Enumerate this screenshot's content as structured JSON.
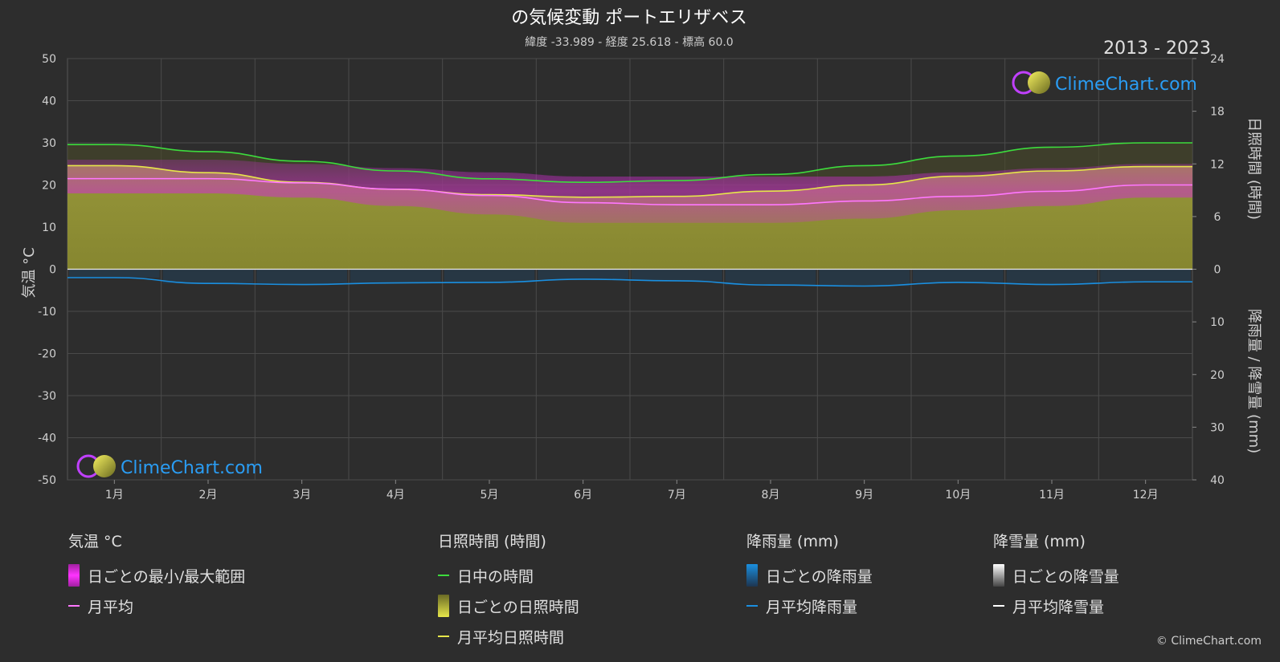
{
  "header": {
    "title": "の気候変動 ポートエリザベス",
    "subtitle": "緯度 -33.989 - 経度 25.618 - 標高 60.0",
    "years": "2013 - 2023"
  },
  "brand": {
    "text": "ClimeChart.com",
    "copyright": "© ClimeChart.com"
  },
  "axes": {
    "left_title": "気温 °C",
    "right_top_title": "日照時間 (時間)",
    "right_bottom_title": "降雨量 / 降雪量 (mm)"
  },
  "legend": {
    "temperature": {
      "title": "気温 °C",
      "items": [
        "日ごとの最小/最大範囲",
        "月平均"
      ]
    },
    "sunshine": {
      "title": "日照時間 (時間)",
      "items": [
        "日中の時間",
        "日ごとの日照時間",
        "月平均日照時間"
      ]
    },
    "rain": {
      "title": "降雨量 (mm)",
      "items": [
        "日ごとの降雨量",
        "月平均降雨量"
      ]
    },
    "snow": {
      "title": "降雪量 (mm)",
      "items": [
        "日ごとの降雪量",
        "月平均降雪量"
      ]
    }
  },
  "colors": {
    "background": "#2d2d2d",
    "daylight": "#3ddc3d",
    "sunshine_line": "#e6e64a",
    "sunshine_fill": "#8f8f32",
    "temp_range": "#d02ed0",
    "temp_avg": "#ff77ff",
    "rain": "#1a8fe0",
    "snow": "#ffffff",
    "brand": "#2a9df4"
  },
  "chart_data": {
    "type": "area",
    "categories": [
      "1月",
      "2月",
      "3月",
      "4月",
      "5月",
      "6月",
      "7月",
      "8月",
      "9月",
      "10月",
      "11月",
      "12月"
    ],
    "left_axis": {
      "label": "気温 °C",
      "range": [
        -50,
        50
      ],
      "ticks": [
        50,
        40,
        30,
        20,
        10,
        0,
        -10,
        -20,
        -30,
        -40,
        -50
      ]
    },
    "right_top_axis": {
      "label": "日照時間 (時間)",
      "range": [
        0,
        24
      ],
      "ticks": [
        24,
        18,
        12,
        6,
        0
      ]
    },
    "right_bottom_axis": {
      "label": "降雨量 / 降雪量 (mm)",
      "range": [
        0,
        40
      ],
      "ticks": [
        0,
        10,
        20,
        30,
        40
      ]
    },
    "series": [
      {
        "name": "日中の時間",
        "unit": "hours",
        "values": [
          14.2,
          13.4,
          12.3,
          11.2,
          10.3,
          9.9,
          10.1,
          10.8,
          11.8,
          12.9,
          13.9,
          14.4
        ]
      },
      {
        "name": "月平均日照時間",
        "unit": "hours",
        "values": [
          11.8,
          11.0,
          9.9,
          9.1,
          8.5,
          8.2,
          8.3,
          8.9,
          9.6,
          10.6,
          11.2,
          11.7
        ]
      },
      {
        "name": "日ごとの最小/最大範囲",
        "unit": "°C",
        "min": [
          18,
          18,
          17,
          15,
          13,
          11,
          11,
          11,
          12,
          14,
          15,
          17
        ],
        "max": [
          26,
          26,
          25,
          24,
          23,
          22,
          22,
          22,
          22,
          23,
          24,
          25
        ]
      },
      {
        "name": "月平均",
        "unit": "°C",
        "values": [
          21.5,
          21.5,
          20.5,
          19.0,
          17.5,
          15.8,
          15.3,
          15.3,
          16.2,
          17.3,
          18.5,
          20.0
        ]
      },
      {
        "name": "月平均降雨量",
        "unit": "mm",
        "values": [
          1.6,
          2.7,
          2.9,
          2.6,
          2.5,
          1.9,
          2.2,
          3.0,
          3.2,
          2.5,
          2.9,
          2.4
        ]
      },
      {
        "name": "月平均降雪量",
        "unit": "mm",
        "values": [
          0,
          0,
          0,
          0,
          0,
          0,
          0,
          0,
          0,
          0,
          0,
          0
        ]
      }
    ],
    "grid": true
  }
}
